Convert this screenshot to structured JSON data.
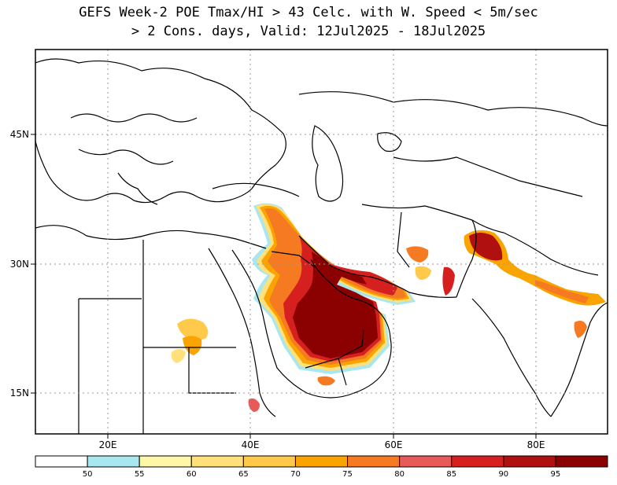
{
  "title": {
    "line1": "GEFS Week-2 POE Tmax/HI > 43 Celc. with W. Speed < 5m/sec",
    "line2": "> 2 Cons. days, Valid: 12Jul2025 - 18Jul2025"
  },
  "map": {
    "lon_range": [
      8,
      90
    ],
    "lat_range": [
      10,
      54
    ],
    "x_ticks": [
      {
        "value": 20,
        "label": "20E"
      },
      {
        "value": 40,
        "label": "40E"
      },
      {
        "value": 60,
        "label": "60E"
      },
      {
        "value": 80,
        "label": "80E"
      }
    ],
    "y_ticks": [
      {
        "value": 45,
        "label": "45N"
      },
      {
        "value": 30,
        "label": "30N"
      },
      {
        "value": 15,
        "label": "15N"
      }
    ],
    "grid": "dotted"
  },
  "colorbar": {
    "levels": [
      "50",
      "55",
      "60",
      "65",
      "70",
      "75",
      "80",
      "85",
      "90",
      "95"
    ],
    "colors": [
      "#ffffff",
      "#a8e6f0",
      "#fff7a8",
      "#ffe07a",
      "#ffc94a",
      "#f9a400",
      "#f57a22",
      "#e85a5a",
      "#d62020",
      "#b01010",
      "#8b0000"
    ]
  }
}
